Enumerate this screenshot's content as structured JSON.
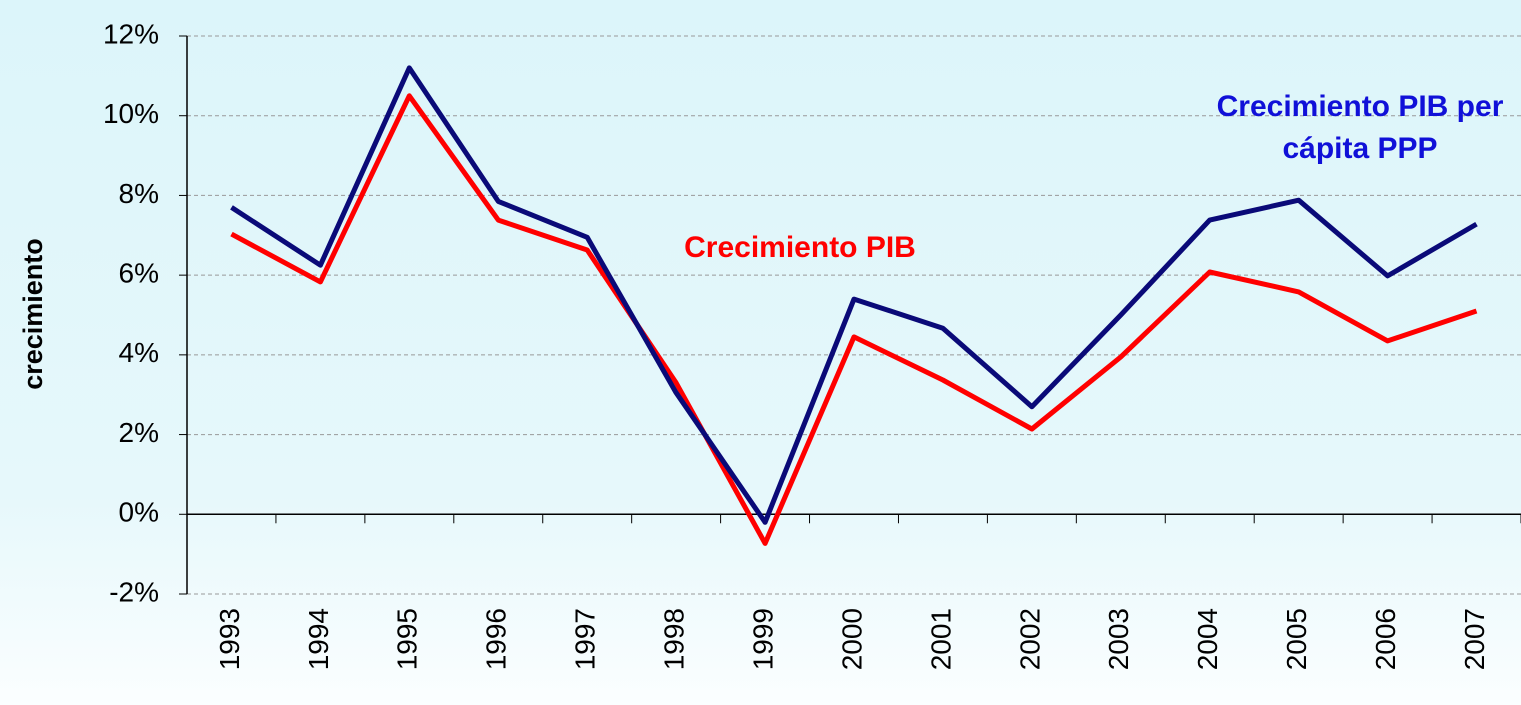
{
  "chart_data": {
    "type": "line",
    "y_label": "crecimiento",
    "categories": [
      "1993",
      "1994",
      "1995",
      "1996",
      "1997",
      "1998",
      "1999",
      "2000",
      "2001",
      "2002",
      "2003",
      "2004",
      "2005",
      "2006",
      "2007"
    ],
    "series": [
      {
        "name": "Crecimiento PIB per cápita PPP",
        "color": "#0a0a78",
        "values": [
          7.7,
          6.25,
          11.2,
          7.85,
          6.95,
          3.05,
          -0.2,
          5.4,
          4.67,
          2.7,
          5.0,
          7.38,
          7.88,
          5.98,
          7.28
        ]
      },
      {
        "name": "Crecimiento PIB",
        "color": "#ff0000",
        "values": [
          7.03,
          5.83,
          10.5,
          7.38,
          6.63,
          3.3,
          -0.73,
          4.45,
          3.37,
          2.14,
          3.95,
          6.08,
          5.58,
          4.35,
          5.1
        ]
      }
    ],
    "ylim": [
      -2,
      12
    ],
    "yticks": [
      {
        "value": -2,
        "label": "-2%"
      },
      {
        "value": 0,
        "label": "0%"
      },
      {
        "value": 2,
        "label": "2%"
      },
      {
        "value": 4,
        "label": "4%"
      },
      {
        "value": 6,
        "label": "6%"
      },
      {
        "value": 8,
        "label": "8%"
      },
      {
        "value": 10,
        "label": "10%"
      },
      {
        "value": 12,
        "label": "12%"
      }
    ],
    "grid": true
  }
}
